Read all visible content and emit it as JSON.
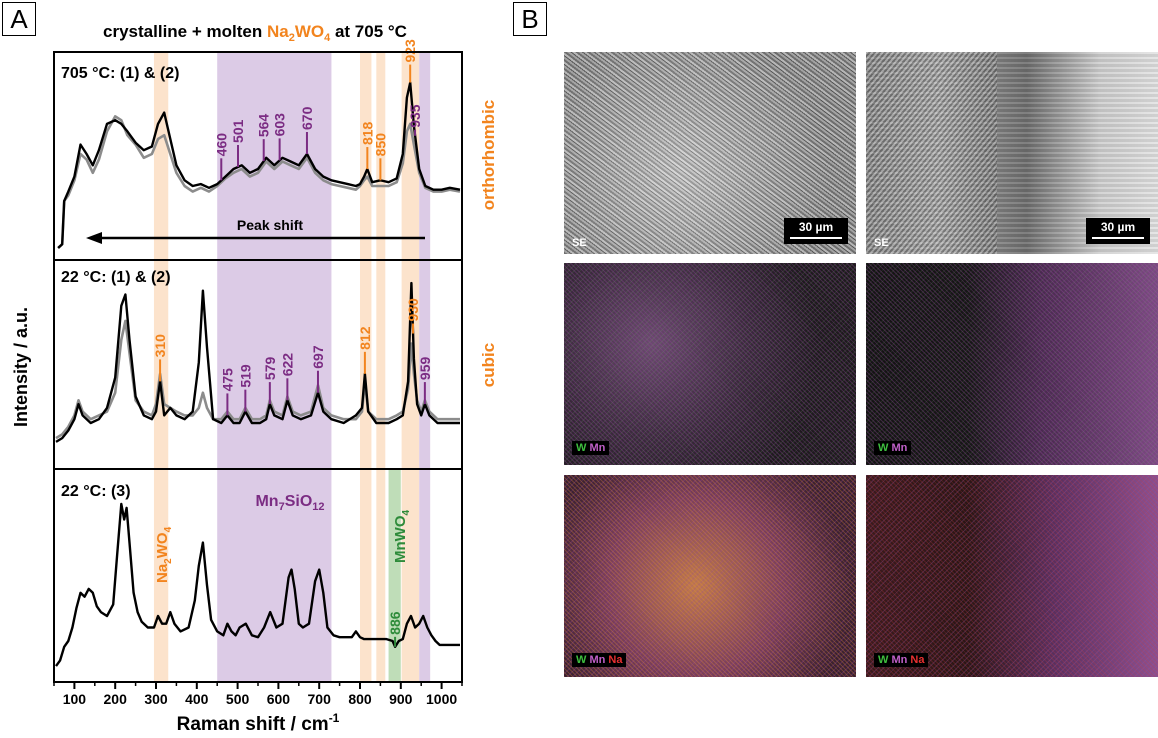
{
  "panel_labels": {
    "a": "A",
    "b": "B"
  },
  "colors": {
    "orange": "#F2841E",
    "purple": "#7B2C83",
    "green": "#2E8B3A",
    "orange_band": "#FCE3CC",
    "purple_band": "#DCCBE6",
    "green_band": "#BFDDB8",
    "gray_trace": "#8C8C8C",
    "black_trace": "#000000"
  },
  "title_parts": {
    "pre": "crystalline + molten ",
    "na": "Na",
    "sub2": "2",
    "wo": "WO",
    "sub4": "4",
    "post": " at 705 °C"
  },
  "y_axis_label": "Intensity / a.u.",
  "phase_labels": {
    "ortho": "orthorhombic",
    "cubic": "cubic"
  },
  "peak_shift_label": "Peak shift",
  "mn7_label": {
    "mn": "Mn",
    "sub7": "7",
    "si": "SiO",
    "sub12": "12"
  },
  "na2wo4_rot": {
    "na": "Na",
    "sub2": "2",
    "wo": "WO",
    "sub4": "4"
  },
  "mnwo4_rot": {
    "text": "MnWO",
    "sub4": "4"
  },
  "chart_data": {
    "type": "line",
    "xlabel": "Raman shift / cm",
    "xlabel_sup": "-1",
    "ylabel": "Intensity / a.u.",
    "xlim": [
      50,
      1050
    ],
    "xticks": [
      100,
      200,
      300,
      400,
      500,
      600,
      700,
      800,
      900,
      1000
    ],
    "bands": [
      {
        "from": 295,
        "to": 330,
        "color": "orange"
      },
      {
        "from": 450,
        "to": 730,
        "color": "purple"
      },
      {
        "from": 800,
        "to": 828,
        "color": "orange"
      },
      {
        "from": 840,
        "to": 862,
        "color": "orange"
      },
      {
        "from": 902,
        "to": 945,
        "color": "orange"
      },
      {
        "from": 945,
        "to": 972,
        "color": "purple"
      },
      {
        "from": 870,
        "to": 900,
        "color": "green",
        "panel": 3
      }
    ],
    "panels": [
      {
        "label": "705 °C: (1) & (2)",
        "peaks": [
          {
            "x": 460,
            "label": "460",
            "color": "purple"
          },
          {
            "x": 501,
            "label": "501",
            "color": "purple"
          },
          {
            "x": 564,
            "label": "564",
            "color": "purple"
          },
          {
            "x": 603,
            "label": "603",
            "color": "purple"
          },
          {
            "x": 670,
            "label": "670",
            "color": "purple"
          },
          {
            "x": 818,
            "label": "818",
            "color": "orange"
          },
          {
            "x": 850,
            "label": "850",
            "color": "orange"
          },
          {
            "x": 923,
            "label": "923",
            "color": "orange"
          },
          {
            "x": 935,
            "label": "935",
            "color": "purple"
          }
        ],
        "series": [
          {
            "color": "gray",
            "x": [
              60,
              70,
              75,
              85,
              100,
              115,
              130,
              145,
              160,
              180,
              200,
              215,
              230,
              250,
              270,
              290,
              305,
              320,
              335,
              350,
              370,
              390,
              410,
              430,
              450,
              470,
              490,
              510,
              530,
              550,
              570,
              590,
              610,
              630,
              650,
              670,
              690,
              710,
              730,
              750,
              770,
              790,
              800,
              810,
              818,
              830,
              850,
              870,
              890,
              905,
              915,
              923,
              932,
              945,
              960,
              980,
              1000,
              1020,
              1045
            ],
            "y": [
              0.0,
              0.02,
              0.25,
              0.28,
              0.36,
              0.5,
              0.47,
              0.4,
              0.47,
              0.62,
              0.7,
              0.68,
              0.6,
              0.55,
              0.48,
              0.5,
              0.58,
              0.6,
              0.5,
              0.4,
              0.33,
              0.3,
              0.32,
              0.3,
              0.33,
              0.37,
              0.4,
              0.42,
              0.38,
              0.4,
              0.46,
              0.42,
              0.46,
              0.44,
              0.42,
              0.48,
              0.4,
              0.36,
              0.34,
              0.33,
              0.32,
              0.31,
              0.33,
              0.36,
              0.38,
              0.33,
              0.33,
              0.33,
              0.35,
              0.45,
              0.62,
              0.66,
              0.55,
              0.4,
              0.32,
              0.3,
              0.3,
              0.31,
              0.3
            ]
          },
          {
            "color": "black",
            "x": [
              60,
              70,
              75,
              85,
              100,
              115,
              130,
              145,
              160,
              180,
              200,
              215,
              230,
              250,
              270,
              290,
              305,
              320,
              335,
              350,
              370,
              390,
              410,
              430,
              450,
              470,
              490,
              510,
              530,
              550,
              570,
              590,
              610,
              630,
              650,
              670,
              690,
              710,
              730,
              750,
              770,
              790,
              800,
              810,
              818,
              830,
              850,
              870,
              890,
              905,
              915,
              923,
              932,
              945,
              960,
              980,
              1000,
              1020,
              1045
            ],
            "y": [
              0.0,
              0.02,
              0.25,
              0.3,
              0.38,
              0.55,
              0.5,
              0.44,
              0.52,
              0.66,
              0.68,
              0.66,
              0.62,
              0.56,
              0.52,
              0.54,
              0.66,
              0.72,
              0.58,
              0.44,
              0.36,
              0.33,
              0.34,
              0.32,
              0.34,
              0.38,
              0.42,
              0.44,
              0.4,
              0.42,
              0.48,
              0.44,
              0.48,
              0.46,
              0.44,
              0.5,
              0.42,
              0.38,
              0.36,
              0.35,
              0.34,
              0.33,
              0.34,
              0.38,
              0.42,
              0.35,
              0.36,
              0.35,
              0.37,
              0.5,
              0.8,
              0.88,
              0.65,
              0.42,
              0.33,
              0.31,
              0.31,
              0.32,
              0.31
            ]
          }
        ]
      },
      {
        "label": "22 °C: (1) & (2)",
        "peaks": [
          {
            "x": 310,
            "label": "310",
            "color": "orange"
          },
          {
            "x": 475,
            "label": "475",
            "color": "purple"
          },
          {
            "x": 519,
            "label": "519",
            "color": "purple"
          },
          {
            "x": 579,
            "label": "579",
            "color": "purple"
          },
          {
            "x": 622,
            "label": "622",
            "color": "purple"
          },
          {
            "x": 697,
            "label": "697",
            "color": "purple"
          },
          {
            "x": 812,
            "label": "812",
            "color": "orange"
          },
          {
            "x": 930,
            "label": "930",
            "color": "orange"
          },
          {
            "x": 959,
            "label": "959",
            "color": "purple"
          }
        ],
        "series": [
          {
            "color": "gray",
            "x": [
              55,
              70,
              85,
              100,
              110,
              120,
              140,
              160,
              180,
              200,
              215,
              225,
              235,
              250,
              270,
              290,
              300,
              310,
              320,
              335,
              350,
              370,
              390,
              405,
              415,
              425,
              440,
              460,
              475,
              490,
              505,
              519,
              535,
              555,
              570,
              579,
              590,
              610,
              622,
              635,
              655,
              680,
              697,
              710,
              730,
              760,
              790,
              805,
              812,
              820,
              840,
              870,
              890,
              905,
              918,
              926,
              932,
              940,
              950,
              959,
              970,
              990,
              1010,
              1030,
              1045
            ],
            "y": [
              0.1,
              0.12,
              0.16,
              0.22,
              0.3,
              0.24,
              0.2,
              0.22,
              0.24,
              0.34,
              0.62,
              0.72,
              0.55,
              0.3,
              0.24,
              0.22,
              0.28,
              0.44,
              0.28,
              0.26,
              0.24,
              0.22,
              0.22,
              0.26,
              0.34,
              0.26,
              0.2,
              0.2,
              0.24,
              0.2,
              0.2,
              0.26,
              0.2,
              0.2,
              0.22,
              0.3,
              0.24,
              0.22,
              0.32,
              0.24,
              0.22,
              0.24,
              0.38,
              0.26,
              0.22,
              0.2,
              0.2,
              0.24,
              0.4,
              0.24,
              0.2,
              0.2,
              0.22,
              0.24,
              0.36,
              0.6,
              0.44,
              0.3,
              0.24,
              0.3,
              0.24,
              0.2,
              0.2,
              0.2,
              0.2
            ]
          },
          {
            "color": "black",
            "x": [
              55,
              70,
              85,
              100,
              110,
              120,
              140,
              160,
              180,
              200,
              215,
              225,
              235,
              250,
              270,
              290,
              300,
              310,
              320,
              335,
              350,
              370,
              390,
              405,
              415,
              425,
              440,
              460,
              475,
              490,
              505,
              519,
              535,
              555,
              570,
              579,
              590,
              610,
              622,
              635,
              655,
              680,
              697,
              710,
              730,
              760,
              790,
              805,
              812,
              820,
              840,
              870,
              890,
              905,
              918,
              926,
              932,
              940,
              950,
              959,
              970,
              990,
              1010,
              1030,
              1045
            ],
            "y": [
              0.08,
              0.1,
              0.14,
              0.2,
              0.28,
              0.22,
              0.18,
              0.2,
              0.26,
              0.42,
              0.8,
              0.86,
              0.62,
              0.32,
              0.22,
              0.2,
              0.24,
              0.4,
              0.22,
              0.26,
              0.22,
              0.2,
              0.24,
              0.5,
              0.88,
              0.58,
              0.2,
              0.18,
              0.22,
              0.18,
              0.18,
              0.24,
              0.18,
              0.18,
              0.2,
              0.28,
              0.22,
              0.2,
              0.3,
              0.22,
              0.2,
              0.22,
              0.34,
              0.24,
              0.2,
              0.18,
              0.22,
              0.26,
              0.44,
              0.24,
              0.18,
              0.18,
              0.2,
              0.22,
              0.4,
              0.92,
              0.52,
              0.28,
              0.22,
              0.28,
              0.22,
              0.18,
              0.18,
              0.18,
              0.18
            ]
          }
        ]
      },
      {
        "label": "22 °C: (3)",
        "peaks": [
          {
            "x": 886,
            "label": "886",
            "color": "green"
          }
        ],
        "series": [
          {
            "color": "black",
            "x": [
              55,
              65,
              75,
              85,
              95,
              105,
              115,
              125,
              135,
              145,
              155,
              165,
              180,
              195,
              205,
              215,
              222,
              228,
              235,
              245,
              255,
              265,
              280,
              295,
              305,
              315,
              325,
              335,
              345,
              360,
              380,
              395,
              405,
              415,
              425,
              435,
              450,
              465,
              475,
              485,
              495,
              505,
              520,
              535,
              550,
              565,
              580,
              595,
              610,
              625,
              632,
              640,
              650,
              660,
              675,
              690,
              700,
              710,
              720,
              735,
              750,
              765,
              780,
              790,
              800,
              810,
              820,
              835,
              850,
              865,
              880,
              886,
              895,
              905,
              915,
              925,
              935,
              945,
              955,
              965,
              975,
              985,
              995,
              1010,
              1025,
              1045
            ],
            "y": [
              0.02,
              0.05,
              0.12,
              0.15,
              0.22,
              0.32,
              0.4,
              0.38,
              0.42,
              0.4,
              0.33,
              0.3,
              0.28,
              0.34,
              0.6,
              0.86,
              0.78,
              0.84,
              0.66,
              0.4,
              0.3,
              0.25,
              0.22,
              0.22,
              0.28,
              0.24,
              0.24,
              0.3,
              0.24,
              0.2,
              0.22,
              0.36,
              0.54,
              0.66,
              0.44,
              0.26,
              0.2,
              0.18,
              0.24,
              0.2,
              0.18,
              0.22,
              0.24,
              0.18,
              0.17,
              0.22,
              0.3,
              0.22,
              0.24,
              0.48,
              0.52,
              0.42,
              0.24,
              0.22,
              0.24,
              0.46,
              0.52,
              0.4,
              0.22,
              0.18,
              0.17,
              0.17,
              0.17,
              0.2,
              0.17,
              0.16,
              0.16,
              0.16,
              0.16,
              0.16,
              0.15,
              0.12,
              0.15,
              0.16,
              0.24,
              0.28,
              0.22,
              0.24,
              0.28,
              0.22,
              0.18,
              0.15,
              0.13,
              0.13,
              0.13,
              0.13
            ]
          }
        ]
      }
    ]
  },
  "images": {
    "se_label": "SE",
    "scale_text": "30 µm",
    "w": "W",
    "mn": "Mn",
    "na": "Na"
  }
}
